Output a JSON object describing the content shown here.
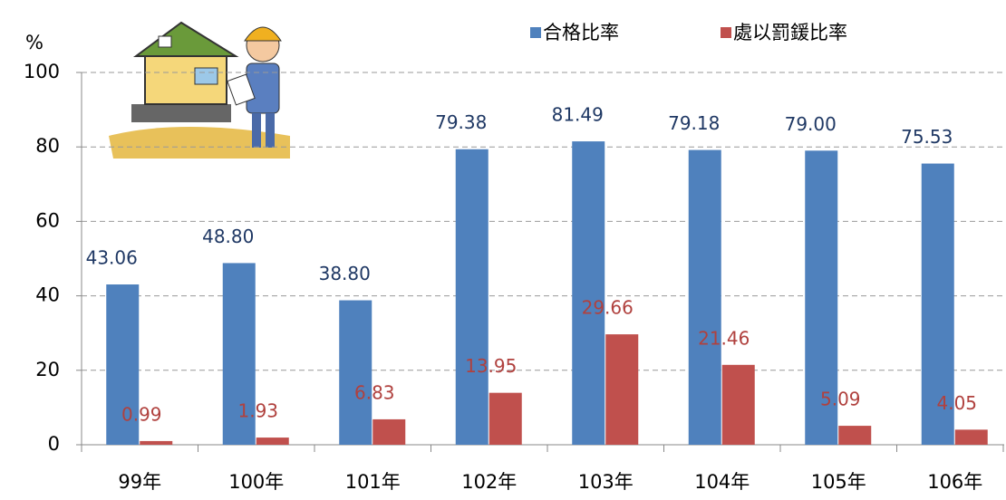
{
  "chart_data": {
    "type": "bar",
    "y_label": "%",
    "categories": [
      "99年",
      "100年",
      "101年",
      "102年",
      "103年",
      "104年",
      "105年",
      "106年"
    ],
    "series": [
      {
        "name": "合格比率",
        "color": "#4f81bd",
        "label_color": "#1f3864",
        "values": [
          43.06,
          48.8,
          38.8,
          79.38,
          81.49,
          79.18,
          79.0,
          75.53
        ],
        "value_labels": [
          "43.06",
          "48.80",
          "38.80",
          "79.38",
          "81.49",
          "79.18",
          "79.00",
          "75.53"
        ]
      },
      {
        "name": "處以罰鍰比率",
        "color": "#c0504d",
        "label_color": "#b0413e",
        "values": [
          0.99,
          1.93,
          6.83,
          13.95,
          29.66,
          21.46,
          5.09,
          4.05
        ],
        "value_labels": [
          "0.99",
          "1.93",
          "6.83",
          "13.95",
          "29.66",
          "21.46",
          "5.09",
          "4.05"
        ]
      }
    ],
    "ylim": [
      0,
      100
    ],
    "yticks": [
      0,
      20,
      40,
      60,
      80,
      100
    ],
    "grid": true
  }
}
